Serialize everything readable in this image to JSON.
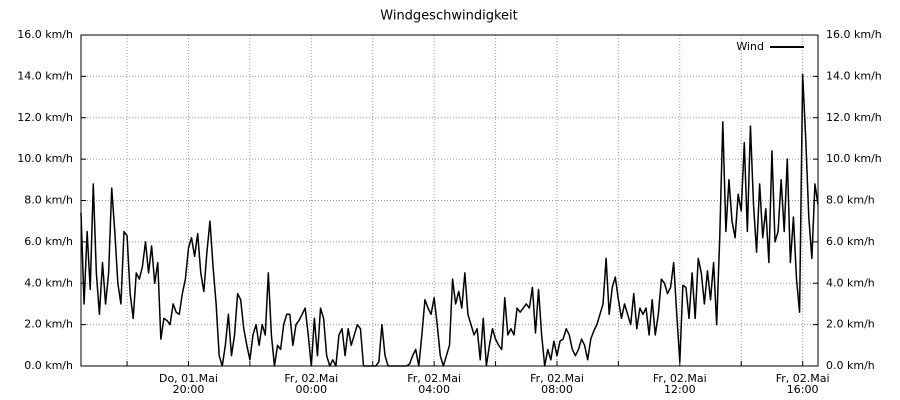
{
  "chart_data": {
    "type": "line",
    "title": "Windgeschwindigkeit",
    "x": [
      "01.05. 16:30",
      "01.05. 16:36",
      "01.05. 16:42",
      "01.05. 16:48",
      "01.05. 16:54",
      "01.05. 17:00",
      "01.05. 17:06",
      "01.05. 17:12",
      "01.05. 17:18",
      "01.05. 17:24",
      "01.05. 17:30",
      "01.05. 17:36",
      "01.05. 17:42",
      "01.05. 17:48",
      "01.05. 17:54",
      "01.05. 18:00",
      "01.05. 18:06",
      "01.05. 18:12",
      "01.05. 18:18",
      "01.05. 18:24",
      "01.05. 18:30",
      "01.05. 18:36",
      "01.05. 18:42",
      "01.05. 18:48",
      "01.05. 18:54",
      "01.05. 19:00",
      "01.05. 19:06",
      "01.05. 19:12",
      "01.05. 19:18",
      "01.05. 19:24",
      "01.05. 19:30",
      "01.05. 19:36",
      "01.05. 19:42",
      "01.05. 19:48",
      "01.05. 19:54",
      "01.05. 20:00",
      "01.05. 20:06",
      "01.05. 20:12",
      "01.05. 20:18",
      "01.05. 20:24",
      "01.05. 20:30",
      "01.05. 20:36",
      "01.05. 20:42",
      "01.05. 20:48",
      "01.05. 20:54",
      "01.05. 21:00",
      "01.05. 21:06",
      "01.05. 21:12",
      "01.05. 21:18",
      "01.05. 21:24",
      "01.05. 21:30",
      "01.05. 21:36",
      "01.05. 21:42",
      "01.05. 21:48",
      "01.05. 21:54",
      "01.05. 22:00",
      "01.05. 22:06",
      "01.05. 22:12",
      "01.05. 22:18",
      "01.05. 22:24",
      "01.05. 22:30",
      "01.05. 22:36",
      "01.05. 22:42",
      "01.05. 22:48",
      "01.05. 22:54",
      "01.05. 23:00",
      "01.05. 23:06",
      "01.05. 23:12",
      "01.05. 23:18",
      "01.05. 23:24",
      "01.05. 23:30",
      "01.05. 23:36",
      "01.05. 23:42",
      "01.05. 23:48",
      "01.05. 23:54",
      "02.05. 00:00",
      "02.05. 00:06",
      "02.05. 00:12",
      "02.05. 00:18",
      "02.05. 00:24",
      "02.05. 00:30",
      "02.05. 00:36",
      "02.05. 00:42",
      "02.05. 00:48",
      "02.05. 00:54",
      "02.05. 01:00",
      "02.05. 01:06",
      "02.05. 01:12",
      "02.05. 01:18",
      "02.05. 01:24",
      "02.05. 01:30",
      "02.05. 01:36",
      "02.05. 01:42",
      "02.05. 01:48",
      "02.05. 01:54",
      "02.05. 02:00",
      "02.05. 02:06",
      "02.05. 02:12",
      "02.05. 02:18",
      "02.05. 02:24",
      "02.05. 02:30",
      "02.05. 02:36",
      "02.05. 02:42",
      "02.05. 02:48",
      "02.05. 02:54",
      "02.05. 03:00",
      "02.05. 03:06",
      "02.05. 03:12",
      "02.05. 03:18",
      "02.05. 03:24",
      "02.05. 03:30",
      "02.05. 03:36",
      "02.05. 03:42",
      "02.05. 03:48",
      "02.05. 03:54",
      "02.05. 04:00",
      "02.05. 04:06",
      "02.05. 04:12",
      "02.05. 04:18",
      "02.05. 04:24",
      "02.05. 04:30",
      "02.05. 04:36",
      "02.05. 04:42",
      "02.05. 04:48",
      "02.05. 04:54",
      "02.05. 05:00",
      "02.05. 05:06",
      "02.05. 05:12",
      "02.05. 05:18",
      "02.05. 05:24",
      "02.05. 05:30",
      "02.05. 05:36",
      "02.05. 05:42",
      "02.05. 05:48",
      "02.05. 05:54",
      "02.05. 06:00",
      "02.05. 06:06",
      "02.05. 06:12",
      "02.05. 06:18",
      "02.05. 06:24",
      "02.05. 06:30",
      "02.05. 06:36",
      "02.05. 06:42",
      "02.05. 06:48",
      "02.05. 06:54",
      "02.05. 07:00",
      "02.05. 07:06",
      "02.05. 07:12",
      "02.05. 07:18",
      "02.05. 07:24",
      "02.05. 07:30",
      "02.05. 07:36",
      "02.05. 07:42",
      "02.05. 07:48",
      "02.05. 07:54",
      "02.05. 08:00",
      "02.05. 08:06",
      "02.05. 08:12",
      "02.05. 08:18",
      "02.05. 08:24",
      "02.05. 08:30",
      "02.05. 08:36",
      "02.05. 08:42",
      "02.05. 08:48",
      "02.05. 08:54",
      "02.05. 09:00",
      "02.05. 09:06",
      "02.05. 09:12",
      "02.05. 09:18",
      "02.05. 09:24",
      "02.05. 09:30",
      "02.05. 09:36",
      "02.05. 09:42",
      "02.05. 09:48",
      "02.05. 09:54",
      "02.05. 10:00",
      "02.05. 10:06",
      "02.05. 10:12",
      "02.05. 10:18",
      "02.05. 10:24",
      "02.05. 10:30",
      "02.05. 10:36",
      "02.05. 10:42",
      "02.05. 10:48",
      "02.05. 10:54",
      "02.05. 11:00",
      "02.05. 11:06",
      "02.05. 11:12",
      "02.05. 11:18",
      "02.05. 11:24",
      "02.05. 11:30",
      "02.05. 11:36",
      "02.05. 11:42",
      "02.05. 11:48",
      "02.05. 11:54",
      "02.05. 12:00",
      "02.05. 12:06",
      "02.05. 12:12",
      "02.05. 12:18",
      "02.05. 12:24",
      "02.05. 12:30",
      "02.05. 12:36",
      "02.05. 12:42",
      "02.05. 12:48",
      "02.05. 12:54",
      "02.05. 13:00",
      "02.05. 13:06",
      "02.05. 13:12",
      "02.05. 13:18",
      "02.05. 13:24",
      "02.05. 13:30",
      "02.05. 13:36",
      "02.05. 13:42",
      "02.05. 13:48",
      "02.05. 13:54",
      "02.05. 14:00",
      "02.05. 14:06",
      "02.05. 14:12",
      "02.05. 14:18",
      "02.05. 14:24",
      "02.05. 14:30",
      "02.05. 14:36",
      "02.05. 14:42",
      "02.05. 14:48",
      "02.05. 14:54",
      "02.05. 15:00",
      "02.05. 15:06",
      "02.05. 15:12",
      "02.05. 15:18",
      "02.05. 15:24",
      "02.05. 15:30",
      "02.05. 15:36",
      "02.05. 15:42",
      "02.05. 15:48",
      "02.05. 15:54",
      "02.05. 16:00",
      "02.05. 16:06",
      "02.05. 16:12",
      "02.05. 16:18",
      "02.05. 16:24",
      "02.05. 16:30"
    ],
    "series": [
      {
        "name": "Wind",
        "color": "#000000",
        "values": [
          7.4,
          3.0,
          6.5,
          3.7,
          8.8,
          4.5,
          2.5,
          5.0,
          3.0,
          4.5,
          8.6,
          6.5,
          4.0,
          3.0,
          6.5,
          6.3,
          3.5,
          2.3,
          4.5,
          4.2,
          4.8,
          6.0,
          4.5,
          5.8,
          4.0,
          5.0,
          1.3,
          2.3,
          2.2,
          2.0,
          3.0,
          2.6,
          2.5,
          3.5,
          4.2,
          5.7,
          6.2,
          5.3,
          6.4,
          4.5,
          3.6,
          5.5,
          7.0,
          4.8,
          3.0,
          0.5,
          0.0,
          1.0,
          2.5,
          0.5,
          1.5,
          3.5,
          3.2,
          1.8,
          1.0,
          0.3,
          1.5,
          2.0,
          1.0,
          2.0,
          1.5,
          4.5,
          1.5,
          0.0,
          1.0,
          0.8,
          2.0,
          2.5,
          2.5,
          1.0,
          2.0,
          2.2,
          2.5,
          2.8,
          1.5,
          0.0,
          2.3,
          0.5,
          2.8,
          2.3,
          0.5,
          0.0,
          0.3,
          0.0,
          1.5,
          1.8,
          0.5,
          1.8,
          1.0,
          1.5,
          2.0,
          1.8,
          0.0,
          0.0,
          0.0,
          0.0,
          0.0,
          0.2,
          2.0,
          0.5,
          0.0,
          0.0,
          0.0,
          0.0,
          0.0,
          0.0,
          0.0,
          0.1,
          0.5,
          0.8,
          0.0,
          1.5,
          3.2,
          2.8,
          2.5,
          3.3,
          2.0,
          0.5,
          0.0,
          0.5,
          1.0,
          4.2,
          3.0,
          3.6,
          2.8,
          4.5,
          2.5,
          2.0,
          1.5,
          1.8,
          0.3,
          2.3,
          0.0,
          1.0,
          1.8,
          1.3,
          1.0,
          0.8,
          3.3,
          1.5,
          1.8,
          1.5,
          2.8,
          2.6,
          2.8,
          3.0,
          2.8,
          3.8,
          1.6,
          3.7,
          1.5,
          0.0,
          0.8,
          0.3,
          1.2,
          0.5,
          1.2,
          1.3,
          1.8,
          1.5,
          0.8,
          0.5,
          0.8,
          1.3,
          1.0,
          0.3,
          1.3,
          1.7,
          2.0,
          2.5,
          3.0,
          5.2,
          2.5,
          3.8,
          4.3,
          3.2,
          2.3,
          3.0,
          2.5,
          2.0,
          3.5,
          1.8,
          2.8,
          2.5,
          2.8,
          1.5,
          3.2,
          1.5,
          2.5,
          4.2,
          4.0,
          3.5,
          3.8,
          5.0,
          2.5,
          0.2,
          3.9,
          3.8,
          2.3,
          4.5,
          2.3,
          5.2,
          4.5,
          3.0,
          4.6,
          3.2,
          5.0,
          2.0,
          6.2,
          11.8,
          6.5,
          9.0,
          7.0,
          6.2,
          8.3,
          7.5,
          10.8,
          6.5,
          11.6,
          7.8,
          5.5,
          8.8,
          6.2,
          7.6,
          5.0,
          10.4,
          6.0,
          6.5,
          9.0,
          6.5,
          10.0,
          5.0,
          7.2,
          4.2,
          2.6,
          14.1,
          11.0,
          7.2,
          5.2,
          8.8,
          7.8
        ]
      }
    ],
    "xlim": [
      "01.05. 16:30",
      "02.05. 16:30"
    ],
    "xticks": [
      {
        "value": "01.05. 18:00",
        "label": null
      },
      {
        "value": "01.05. 20:00",
        "label": [
          "Do, 01.Mai",
          "20:00"
        ]
      },
      {
        "value": "01.05. 22:00",
        "label": null
      },
      {
        "value": "02.05. 00:00",
        "label": [
          "Fr, 02.Mai",
          "00:00"
        ]
      },
      {
        "value": "02.05. 02:00",
        "label": null
      },
      {
        "value": "02.05. 04:00",
        "label": [
          "Fr, 02.Mai",
          "04:00"
        ]
      },
      {
        "value": "02.05. 06:00",
        "label": null
      },
      {
        "value": "02.05. 08:00",
        "label": [
          "Fr, 02.Mai",
          "08:00"
        ]
      },
      {
        "value": "02.05. 10:00",
        "label": null
      },
      {
        "value": "02.05. 12:00",
        "label": [
          "Fr, 02.Mai",
          "12:00"
        ]
      },
      {
        "value": "02.05. 14:00",
        "label": null
      },
      {
        "value": "02.05. 16:00",
        "label": [
          "Fr, 02.Mai",
          "16:00"
        ]
      }
    ],
    "ylim": [
      0,
      16
    ],
    "yticks": [
      {
        "value": 0,
        "label": "0.0 km/h"
      },
      {
        "value": 2,
        "label": "2.0 km/h"
      },
      {
        "value": 4,
        "label": "4.0 km/h"
      },
      {
        "value": 6,
        "label": "6.0 km/h"
      },
      {
        "value": 8,
        "label": "8.0 km/h"
      },
      {
        "value": 10,
        "label": "10.0 km/h"
      },
      {
        "value": 12,
        "label": "12.0 km/h"
      },
      {
        "value": 14,
        "label": "14.0 km/h"
      },
      {
        "value": 16,
        "label": "16.0 km/h"
      }
    ],
    "grid": true,
    "legend": "upper right"
  }
}
